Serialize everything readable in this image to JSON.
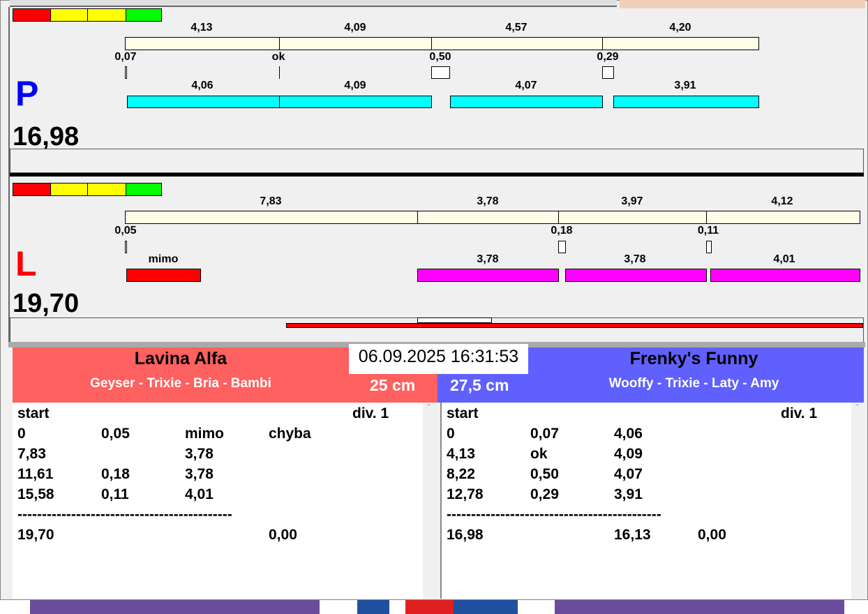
{
  "legend_colors": [
    "#ff0000",
    "#ffff00",
    "#ffff00",
    "#00ff00"
  ],
  "p_lane": {
    "letter": "P",
    "letter_color": "#0000ff",
    "total": "16,98",
    "top_labels": [
      "4,13",
      "4,09",
      "4,57",
      "4,20"
    ],
    "mid_labels": [
      "0,07",
      "ok",
      "0,50",
      "0,29"
    ],
    "bottom_labels": [
      "4,06",
      "4,09",
      "4,07",
      "3,91"
    ],
    "bar_color": "#00ffff"
  },
  "l_lane": {
    "letter": "L",
    "letter_color": "#ff0000",
    "total": "19,70",
    "top_labels": [
      "7,83",
      "3,78",
      "3,97",
      "4,12"
    ],
    "mid_labels": [
      "0,05",
      "0,18",
      "0,11"
    ],
    "bottom_labels": [
      "mimo",
      "3,78",
      "3,78",
      "4,01"
    ],
    "bar_color": "#ff00ff"
  },
  "datetime": "06.09.2025 16:31:53",
  "left_team": {
    "name": "Lavina Alfa",
    "dogs": "Geyser - Trixie - Bria - Bambi",
    "height": "25 cm",
    "color": "#ff6060",
    "header": [
      "start",
      "div.  1"
    ],
    "rows": [
      [
        "0",
        "0,05",
        "mimo",
        "chyba"
      ],
      [
        "7,83",
        "",
        "3,78",
        ""
      ],
      [
        "11,61",
        "0,18",
        "3,78",
        ""
      ],
      [
        "15,58",
        "0,11",
        "4,01",
        ""
      ]
    ],
    "separator": "--------------------------------------------",
    "total": [
      "19,70",
      "",
      "",
      "0,00"
    ]
  },
  "right_team": {
    "name": "Frenky's Funny",
    "dogs": "Wooffy - Trixie - Laty - Amy",
    "height": "27,5 cm",
    "color": "#6060ff",
    "header": [
      "start",
      "div.  1"
    ],
    "rows": [
      [
        "0",
        "0,07",
        "4,06",
        ""
      ],
      [
        "4,13",
        "ok",
        "4,09",
        ""
      ],
      [
        "8,22",
        "0,50",
        "4,07",
        ""
      ],
      [
        "12,78",
        "0,29",
        "3,91",
        ""
      ]
    ],
    "separator": "--------------------------------------------",
    "total": [
      "16,98",
      "",
      "16,13",
      "0,00"
    ]
  }
}
